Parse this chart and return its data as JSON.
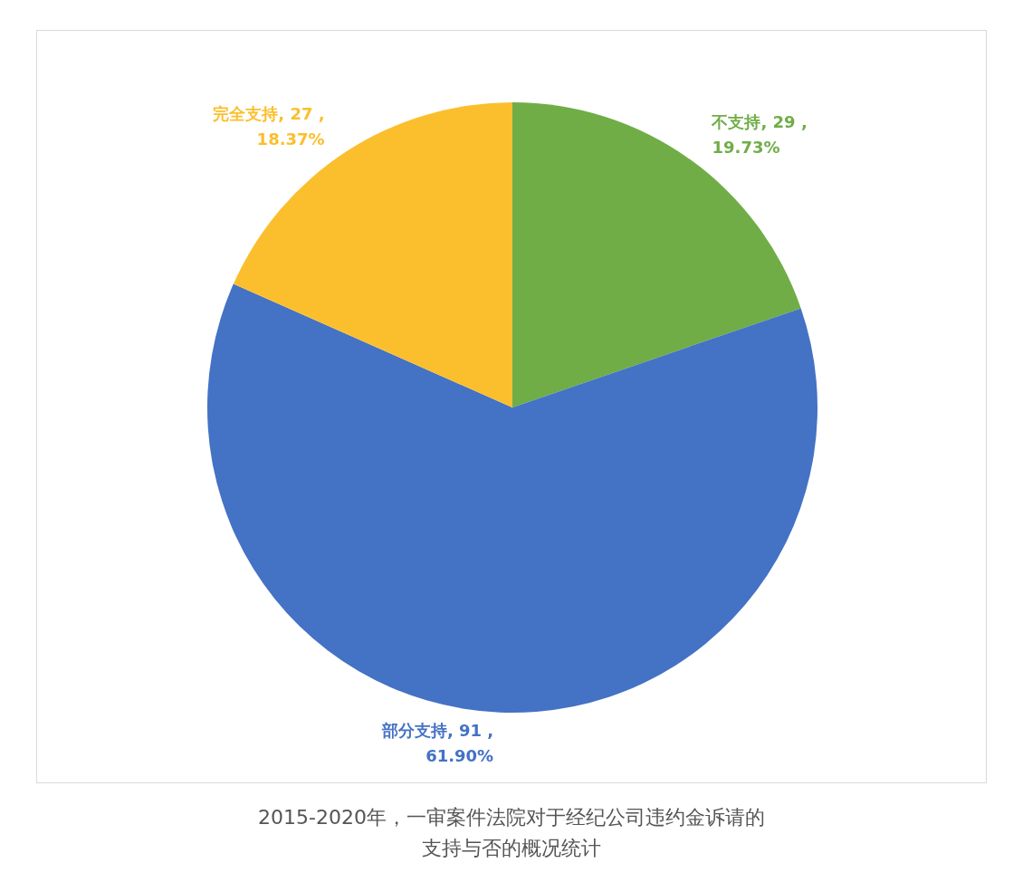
{
  "chart_data": {
    "type": "pie",
    "title": "2015-2020年，一审案件法院对于经纪公司违约金诉请的支持与否的概况统计",
    "categories": [
      "不支持",
      "部分支持",
      "完全支持"
    ],
    "values": [
      29,
      91,
      27
    ],
    "colors": [
      "#70ad47",
      "#4472c4",
      "#fbbf2d"
    ],
    "value_labels": [
      "29 ,\n19.73%",
      "91 ,\n61.90%",
      "27 ,\n18.37%"
    ],
    "legend": false
  }
}
